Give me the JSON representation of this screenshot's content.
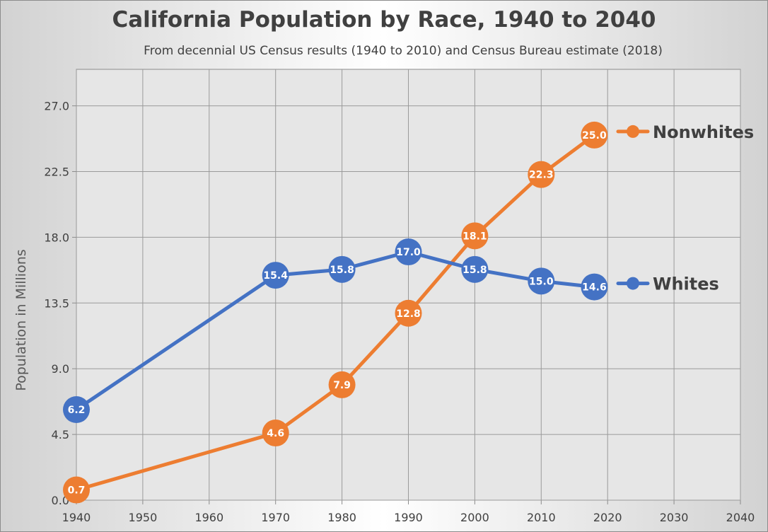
{
  "chart_data": {
    "type": "line",
    "title": "California Population by Race, 1940 to 2040",
    "subtitle": "From decennial US Census results (1940 to 2010) and Census Bureau estimate (2018)",
    "xlabel": "",
    "ylabel": "Population in Millions",
    "xlim": [
      1940,
      2040
    ],
    "ylim": [
      0,
      29.5
    ],
    "x_ticks": [
      1940,
      1950,
      1960,
      1970,
      1980,
      1990,
      2000,
      2010,
      2020,
      2030,
      2040
    ],
    "y_ticks": [
      0,
      4.5,
      9,
      13.5,
      18,
      22.5,
      27
    ],
    "y_tick_labels": [
      "0.0",
      "4.5",
      "9.0",
      "13.5",
      "18.0",
      "22.5",
      "27.0"
    ],
    "grid": true,
    "legend": "right, at line ends",
    "series": [
      {
        "name": "Nonwhites",
        "color": "#ed7d31",
        "x": [
          1940,
          1970,
          1980,
          1990,
          2000,
          2010,
          2018
        ],
        "y": [
          0.7,
          4.6,
          7.9,
          12.8,
          18.1,
          22.3,
          25.0
        ],
        "labels": [
          "0.7",
          "4.6",
          "7.9",
          "12.8",
          "18.1",
          "22.3",
          "25.0"
        ]
      },
      {
        "name": "Whites",
        "color": "#4472c4",
        "x": [
          1940,
          1970,
          1980,
          1990,
          2000,
          2010,
          2018
        ],
        "y": [
          6.2,
          15.4,
          15.8,
          17.0,
          15.8,
          15.0,
          14.6
        ],
        "labels": [
          "6.2",
          "15.4",
          "15.8",
          "17.0",
          "15.8",
          "15.0",
          "14.6"
        ]
      }
    ]
  }
}
